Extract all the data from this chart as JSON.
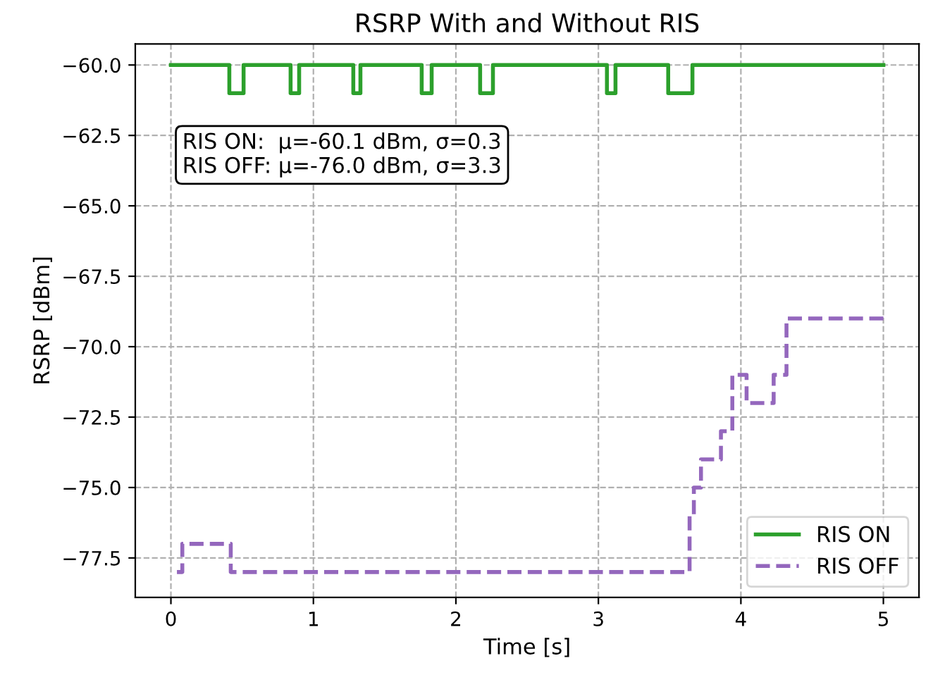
{
  "chart_data": {
    "type": "step",
    "title": "RSRP With and Without RIS",
    "xlabel": "Time [s]",
    "ylabel": "RSRP [dBm]",
    "xlim": [
      -0.25,
      5.25
    ],
    "ylim": [
      -78.9,
      -59.25
    ],
    "xticks": [
      0,
      1,
      2,
      3,
      4,
      5
    ],
    "yticks": [
      {
        "value": -77.5,
        "label": "−77.5"
      },
      {
        "value": -75,
        "label": "−75.0"
      },
      {
        "value": -72.5,
        "label": "−72.5"
      },
      {
        "value": -70,
        "label": "−70.0"
      },
      {
        "value": -67.5,
        "label": "−67.5"
      },
      {
        "value": -65,
        "label": "−65.0"
      },
      {
        "value": -62.5,
        "label": "−62.5"
      },
      {
        "value": -60,
        "label": "−60.0"
      }
    ],
    "grid": true,
    "legend": "bottom right",
    "series": [
      {
        "name": "RIS ON",
        "color": "#2ca02c",
        "line_style": "solid",
        "x": [
          0,
          0.41,
          0.51,
          0.84,
          0.9,
          1.28,
          1.33,
          1.76,
          1.83,
          2.17,
          2.26,
          3.06,
          3.12,
          3.49,
          3.66,
          5.0
        ],
        "values": [
          -60,
          -61,
          -60,
          -61,
          -60,
          -61,
          -60,
          -61,
          -60,
          -61,
          -60,
          -61,
          -60,
          -61,
          -60,
          -60
        ]
      },
      {
        "name": "RIS OFF",
        "color": "#9467bd",
        "line_style": "dashed",
        "x": [
          0,
          0.08,
          0.42,
          3.64,
          3.67,
          3.72,
          3.86,
          3.94,
          4.04,
          4.23,
          4.32,
          5.0
        ],
        "values": [
          -78,
          -77,
          -78,
          -76,
          -75,
          -74,
          -73,
          -71,
          -72,
          -71,
          -69,
          -69
        ]
      }
    ],
    "annotations": [
      "RIS ON:  μ=-60.1 dBm, σ=0.3\nRIS OFF: μ=-76.0 dBm, σ=3.3"
    ]
  }
}
